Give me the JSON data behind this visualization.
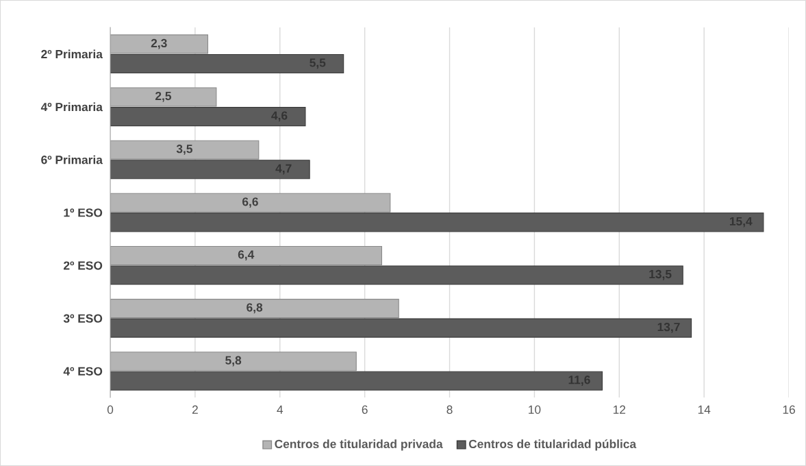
{
  "chart_data": {
    "type": "bar",
    "orientation": "horizontal",
    "categories": [
      "2º Primaria",
      "4º Primaria",
      "6º Primaria",
      "1º ESO",
      "2º ESO",
      "3º ESO",
      "4º ESO"
    ],
    "series": [
      {
        "name": "Centros de titularidad privada",
        "color": "#b4b4b4",
        "values": [
          2.3,
          2.5,
          3.5,
          6.6,
          6.4,
          6.8,
          5.8
        ],
        "value_labels": [
          "2,3",
          "2,5",
          "3,5",
          "6,6",
          "6,4",
          "6,8",
          "5,8"
        ]
      },
      {
        "name": "Centros de titularidad pública",
        "color": "#5c5c5c",
        "values": [
          5.5,
          4.6,
          4.7,
          15.4,
          13.5,
          13.7,
          11.6
        ],
        "value_labels": [
          "5,5",
          "4,6",
          "4,7",
          "15,4",
          "13,5",
          "13,7",
          "11,6"
        ]
      }
    ],
    "xlim": [
      0,
      16
    ],
    "xticks": [
      0,
      2,
      4,
      6,
      8,
      10,
      12,
      14,
      16
    ],
    "grid": "x",
    "legend": "bottom"
  }
}
